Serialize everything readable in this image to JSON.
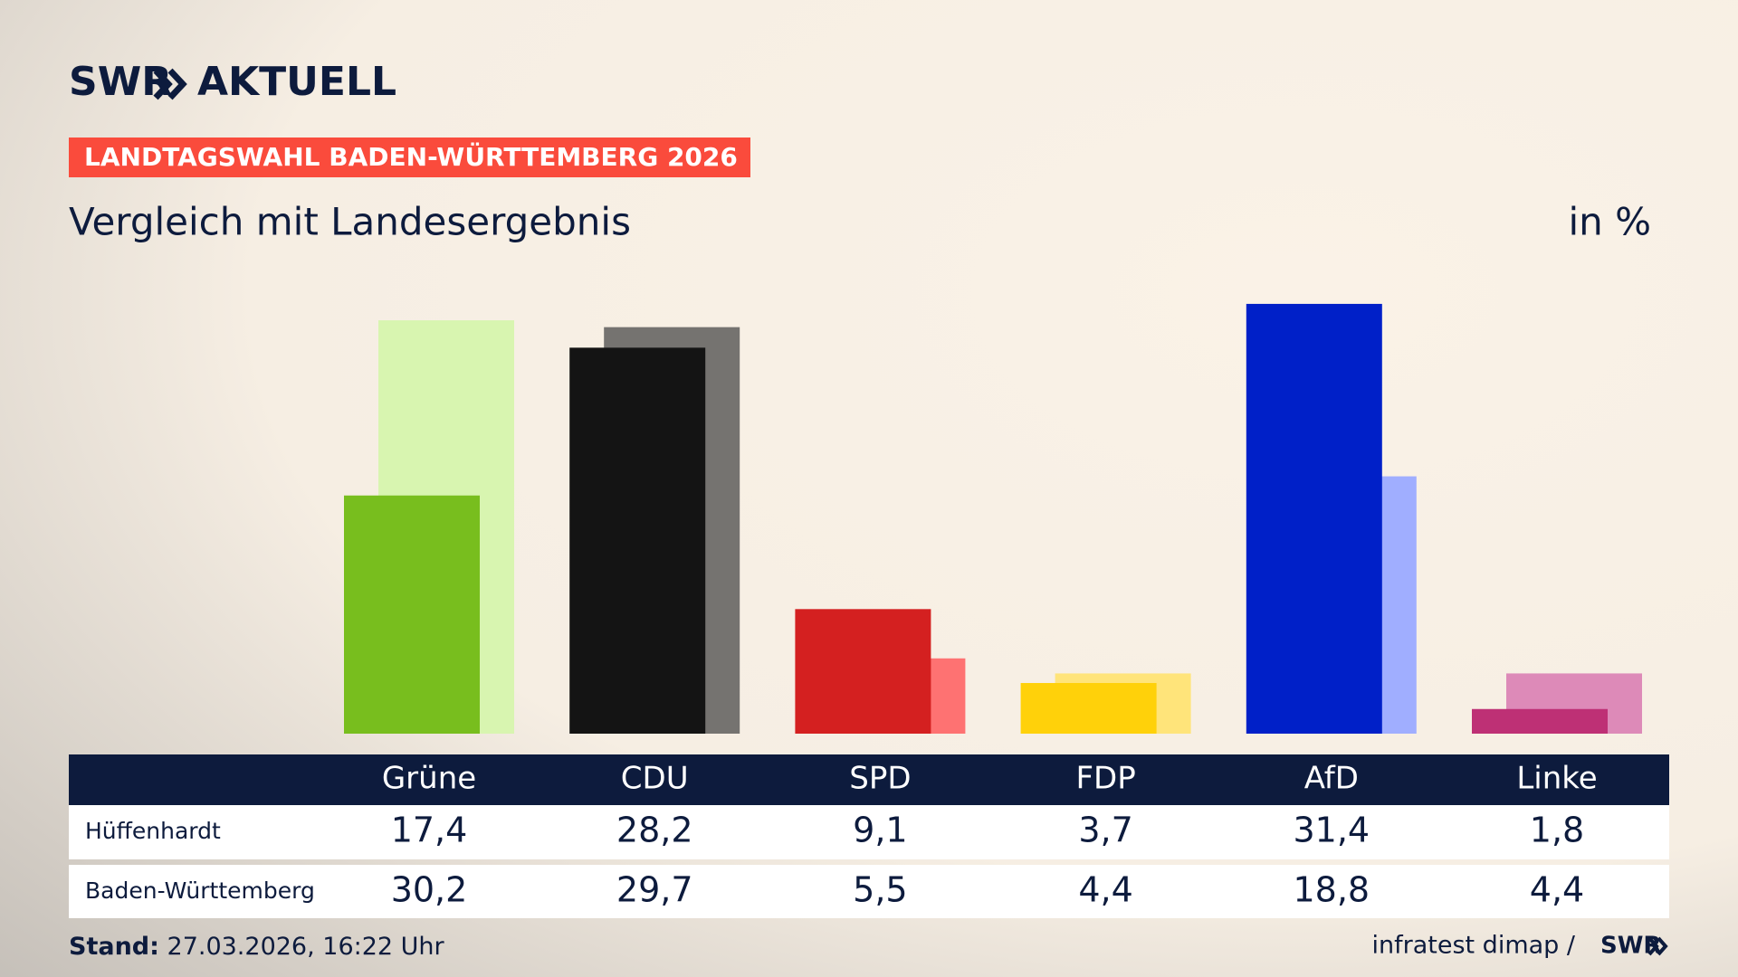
{
  "chart_data": {
    "type": "bar",
    "logo": "SWR",
    "logo_suffix": "AKTUELL",
    "kicker": "LANDTAGSWAHL BADEN-WÜRTTEMBERG 2026",
    "title": "Vergleich mit Landesergebnis",
    "unit": "in %",
    "categories": [
      "Grüne",
      "CDU",
      "SPD",
      "FDP",
      "AfD",
      "Linke"
    ],
    "series": [
      {
        "name": "Hüffenhardt",
        "values": [
          17.4,
          28.2,
          9.1,
          3.7,
          31.4,
          1.8
        ],
        "value_labels": [
          "17,4",
          "28,2",
          "9,1",
          "3,7",
          "31,4",
          "1,8"
        ],
        "colors": [
          "#78be1e",
          "#141414",
          "#d42020",
          "#ffd10a",
          "#0020c8",
          "#be3075"
        ]
      },
      {
        "name": "Baden-Württemberg",
        "values": [
          30.2,
          29.7,
          5.5,
          4.4,
          18.8,
          4.4
        ],
        "value_labels": [
          "30,2",
          "29,7",
          "5,5",
          "4,4",
          "18,8",
          "4,4"
        ],
        "colors": [
          "#d8f5b0",
          "#757370",
          "#fe7272",
          "#ffe47a",
          "#a0aeff",
          "#dd8ab8"
        ]
      }
    ],
    "footer_label": "Stand:",
    "footer_text": "27.03.2026, 16:22 Uhr",
    "source": "infratest dimap /",
    "source_logo": "SWR"
  }
}
